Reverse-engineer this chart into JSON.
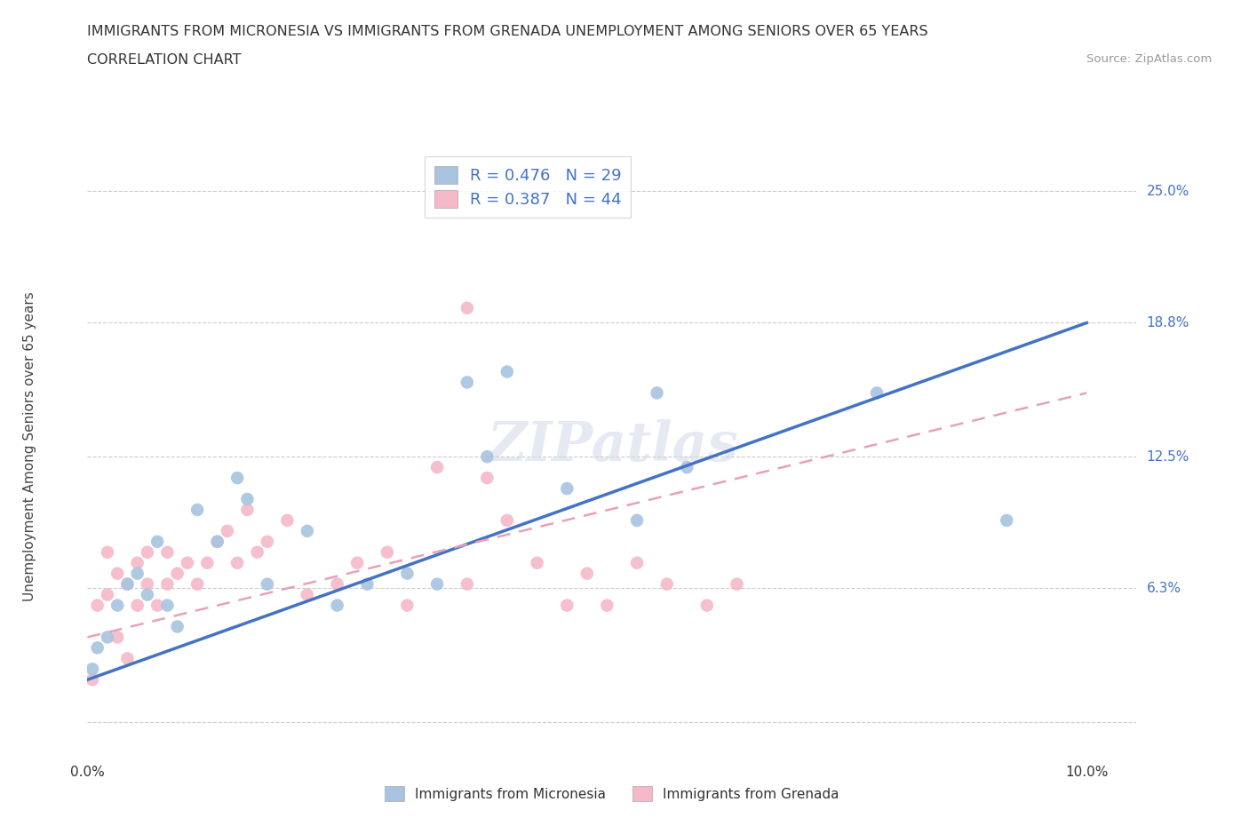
{
  "title_line1": "IMMIGRANTS FROM MICRONESIA VS IMMIGRANTS FROM GRENADA UNEMPLOYMENT AMONG SENIORS OVER 65 YEARS",
  "title_line2": "CORRELATION CHART",
  "source": "Source: ZipAtlas.com",
  "ylabel": "Unemployment Among Seniors over 65 years",
  "xlim": [
    0.0,
    0.105
  ],
  "ylim": [
    -0.01,
    0.27
  ],
  "xticks": [
    0.0,
    0.02,
    0.04,
    0.06,
    0.08,
    0.1
  ],
  "ytick_positions": [
    0.0,
    0.063,
    0.125,
    0.188,
    0.25
  ],
  "yticklabels": [
    "",
    "6.3%",
    "12.5%",
    "18.8%",
    "25.0%"
  ],
  "r_micronesia": 0.476,
  "n_micronesia": 29,
  "r_grenada": 0.387,
  "n_grenada": 44,
  "color_micronesia": "#a8c4e0",
  "color_grenada": "#f4b8c8",
  "line_micronesia": "#4472c4",
  "line_grenada_color": "#e8a0b8",
  "watermark": "ZIPatlas",
  "micronesia_x": [
    0.0005,
    0.001,
    0.002,
    0.003,
    0.004,
    0.005,
    0.006,
    0.007,
    0.008,
    0.009,
    0.011,
    0.013,
    0.015,
    0.016,
    0.018,
    0.022,
    0.025,
    0.028,
    0.032,
    0.035,
    0.038,
    0.04,
    0.042,
    0.048,
    0.055,
    0.057,
    0.06,
    0.079,
    0.092
  ],
  "micronesia_y": [
    0.025,
    0.035,
    0.04,
    0.055,
    0.065,
    0.07,
    0.06,
    0.085,
    0.055,
    0.045,
    0.1,
    0.085,
    0.115,
    0.105,
    0.065,
    0.09,
    0.055,
    0.065,
    0.07,
    0.065,
    0.16,
    0.125,
    0.165,
    0.11,
    0.095,
    0.155,
    0.12,
    0.155,
    0.095
  ],
  "grenada_x": [
    0.0005,
    0.001,
    0.002,
    0.002,
    0.003,
    0.003,
    0.004,
    0.004,
    0.005,
    0.005,
    0.006,
    0.006,
    0.007,
    0.008,
    0.008,
    0.009,
    0.01,
    0.011,
    0.012,
    0.013,
    0.014,
    0.015,
    0.016,
    0.017,
    0.018,
    0.02,
    0.022,
    0.025,
    0.027,
    0.03,
    0.032,
    0.035,
    0.038,
    0.038,
    0.04,
    0.042,
    0.045,
    0.048,
    0.05,
    0.052,
    0.055,
    0.058,
    0.062,
    0.065
  ],
  "grenada_y": [
    0.02,
    0.055,
    0.06,
    0.08,
    0.04,
    0.07,
    0.03,
    0.065,
    0.055,
    0.075,
    0.065,
    0.08,
    0.055,
    0.065,
    0.08,
    0.07,
    0.075,
    0.065,
    0.075,
    0.085,
    0.09,
    0.075,
    0.1,
    0.08,
    0.085,
    0.095,
    0.06,
    0.065,
    0.075,
    0.08,
    0.055,
    0.12,
    0.195,
    0.065,
    0.115,
    0.095,
    0.075,
    0.055,
    0.07,
    0.055,
    0.075,
    0.065,
    0.055,
    0.065
  ],
  "background_color": "#ffffff",
  "grid_color": "#cccccc",
  "line_mic_x0": 0.0,
  "line_mic_y0": 0.02,
  "line_mic_x1": 0.1,
  "line_mic_y1": 0.188,
  "line_gren_x0": 0.0,
  "line_gren_y0": 0.04,
  "line_gren_x1": 0.1,
  "line_gren_y1": 0.155
}
